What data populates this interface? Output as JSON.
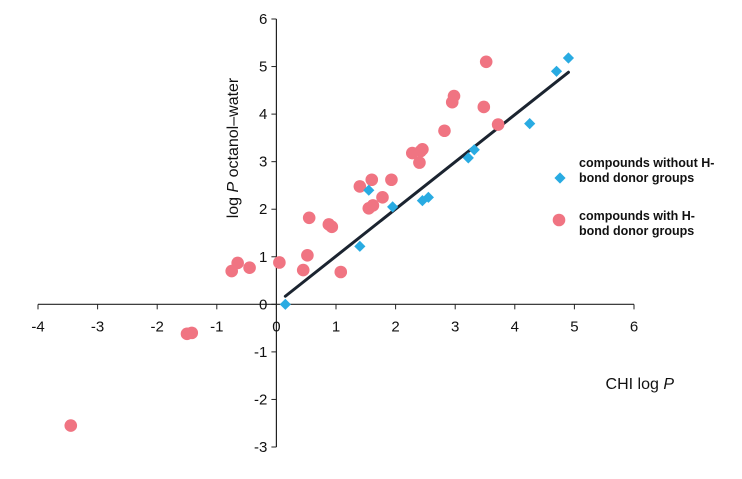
{
  "chart_data": {
    "type": "scatter",
    "title": "",
    "xlabel": {
      "prefix": "CHI log ",
      "italic": "P"
    },
    "ylabel": {
      "prefix": "log ",
      "italic": "P",
      "suffix": " octanol–water"
    },
    "xlim": [
      -4,
      6
    ],
    "ylim": [
      -3,
      6
    ],
    "x_ticks": [
      -4,
      -3,
      -2,
      -1,
      0,
      1,
      2,
      3,
      4,
      5,
      6
    ],
    "y_ticks": [
      -3,
      -2,
      -1,
      0,
      1,
      2,
      3,
      4,
      5,
      6
    ],
    "grid": false,
    "legend_position": "right",
    "series": [
      {
        "name": "compounds without H-bond donor groups",
        "legend_lines": [
          "compounds without H-",
          "bond donor groups"
        ],
        "marker": "diamond",
        "color": "#29ABE2",
        "points": [
          [
            0.15,
            0.0
          ],
          [
            1.4,
            1.22
          ],
          [
            1.55,
            2.4
          ],
          [
            1.95,
            2.05
          ],
          [
            2.45,
            2.18
          ],
          [
            2.55,
            2.25
          ],
          [
            3.22,
            3.08
          ],
          [
            3.32,
            3.25
          ],
          [
            4.25,
            3.8
          ],
          [
            4.7,
            4.9
          ],
          [
            4.9,
            5.18
          ]
        ]
      },
      {
        "name": "compounds with H-bond donor groups",
        "legend_lines": [
          "compounds with H-",
          "bond donor groups"
        ],
        "marker": "circle",
        "color": "#F07482",
        "points": [
          [
            -3.45,
            -2.55
          ],
          [
            -1.5,
            -0.62
          ],
          [
            -1.42,
            -0.6
          ],
          [
            -0.75,
            0.7
          ],
          [
            -0.65,
            0.87
          ],
          [
            -0.45,
            0.77
          ],
          [
            0.05,
            0.88
          ],
          [
            0.45,
            0.72
          ],
          [
            0.52,
            1.03
          ],
          [
            0.55,
            1.82
          ],
          [
            0.88,
            1.68
          ],
          [
            0.93,
            1.63
          ],
          [
            1.08,
            0.68
          ],
          [
            1.4,
            2.48
          ],
          [
            1.55,
            2.02
          ],
          [
            1.62,
            2.08
          ],
          [
            1.6,
            2.62
          ],
          [
            1.78,
            2.25
          ],
          [
            1.93,
            2.62
          ],
          [
            2.28,
            3.18
          ],
          [
            2.4,
            2.98
          ],
          [
            2.42,
            3.22
          ],
          [
            2.45,
            3.26
          ],
          [
            2.82,
            3.65
          ],
          [
            2.95,
            4.25
          ],
          [
            2.98,
            4.38
          ],
          [
            3.48,
            4.15
          ],
          [
            3.52,
            5.1
          ],
          [
            3.72,
            3.78
          ]
        ]
      }
    ],
    "trendline": {
      "x": [
        0.15,
        4.9
      ],
      "y": [
        0.17,
        4.88
      ],
      "color": "#1B2430"
    }
  }
}
